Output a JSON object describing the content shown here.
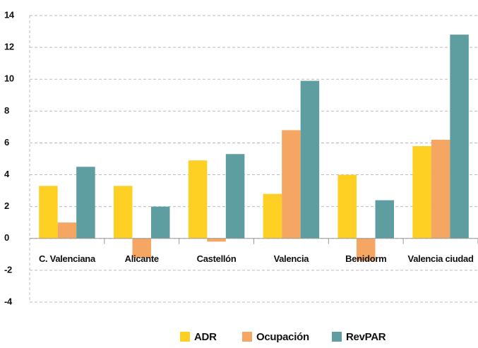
{
  "chart_data": {
    "type": "bar",
    "categories": [
      "C. Valenciana",
      "Alicante",
      "Castellón",
      "Valencia",
      "Benidorm",
      "Valencia ciudad"
    ],
    "series": [
      {
        "name": "ADR",
        "color": "#fdd023",
        "values": [
          3.3,
          3.3,
          4.9,
          2.8,
          4.0,
          5.8
        ]
      },
      {
        "name": "Ocupación",
        "color": "#f5a662",
        "values": [
          1.0,
          -1.2,
          -0.2,
          6.8,
          -1.4,
          6.2
        ]
      },
      {
        "name": "RevPAR",
        "color": "#5f9ea0",
        "values": [
          4.5,
          2.0,
          5.3,
          9.9,
          2.4,
          12.8
        ]
      }
    ],
    "ylim": [
      -4,
      14
    ],
    "yticks": [
      -4,
      -2,
      0,
      2,
      4,
      6,
      8,
      10,
      12,
      14
    ],
    "grid": true,
    "legend": "bottom"
  }
}
